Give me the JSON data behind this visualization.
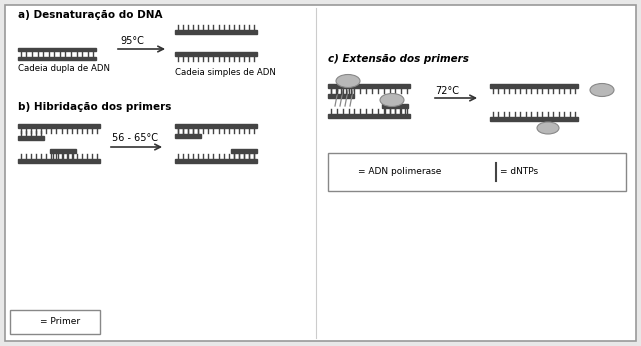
{
  "bg_color": "#e8e8e8",
  "border_color": "#999999",
  "inner_bg": "#ffffff",
  "title_a": "a) Desnaturação do DNA",
  "title_b": "b) Hibridação dos primers",
  "title_c": "c) Extensão dos primers",
  "label_cadeia_dupla": "Cadeia dupla de ADN",
  "label_cadeia_simples": "Cadeia simples de ADN",
  "temp_a": "95°C",
  "temp_b": "56 - 65°C",
  "temp_c": "72°C",
  "legend_polymerase": "= ADN polimerase",
  "legend_dntps": "= dNTPs",
  "legend_primer": "= Primer",
  "stripe_color": "#444444",
  "arrow_color": "#333333",
  "ellipse_face": "#b8b8b8",
  "ellipse_edge": "#888888"
}
